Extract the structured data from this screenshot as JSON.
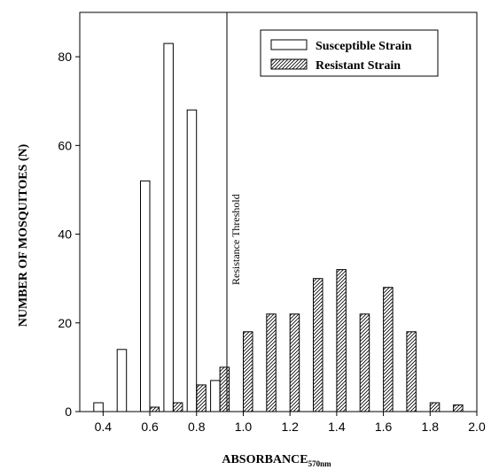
{
  "chart_data": {
    "type": "bar",
    "xlabel": "ABSORBANCE",
    "xlabel_subscript": "570nm",
    "ylabel": "NUMBER OF MOSQUITOES (N)",
    "xlim": [
      0.3,
      2.0
    ],
    "ylim": [
      0,
      90
    ],
    "x_ticks": [
      "0.4",
      "0.6",
      "0.8",
      "1.0",
      "1.2",
      "1.4",
      "1.6",
      "1.8",
      "2.0"
    ],
    "y_ticks": [
      "0",
      "20",
      "40",
      "60",
      "80"
    ],
    "bar_width": 0.04,
    "legend_position": "top-right",
    "series": [
      {
        "name": "Susceptible Strain",
        "fill": "open",
        "x": [
          0.38,
          0.48,
          0.58,
          0.68,
          0.78,
          0.88
        ],
        "values": [
          2,
          14,
          52,
          83,
          68,
          7
        ]
      },
      {
        "name": "Resistant Strain",
        "fill": "hatched",
        "x": [
          0.62,
          0.72,
          0.82,
          0.92,
          1.02,
          1.12,
          1.22,
          1.32,
          1.42,
          1.52,
          1.62,
          1.72,
          1.82,
          1.92
        ],
        "values": [
          1,
          2,
          6,
          10,
          18,
          22,
          22,
          30,
          32,
          22,
          28,
          18,
          2,
          1.5
        ]
      }
    ],
    "threshold": {
      "x": 0.93,
      "label": "Resistance Threshold"
    }
  }
}
